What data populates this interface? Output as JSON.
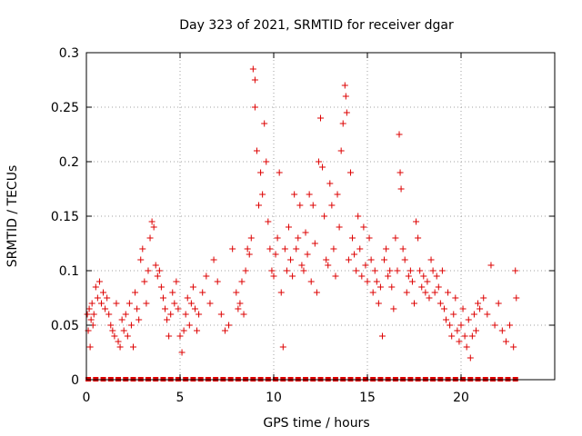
{
  "chart_data": {
    "type": "scatter",
    "title": "Day 323 of 2021, SRMTID for receiver dgar",
    "xlabel": "GPS time / hours",
    "ylabel": "SRMTID / TECUs",
    "xlim": [
      0,
      25
    ],
    "ylim": [
      0,
      0.3
    ],
    "xticks": [
      0,
      5,
      10,
      15,
      20
    ],
    "xtick_labels": [
      "0",
      "5",
      "10",
      "15",
      "20"
    ],
    "yticks": [
      0,
      0.05,
      0.1,
      0.15,
      0.2,
      0.25,
      0.3
    ],
    "ytick_labels": [
      "0",
      "0.05",
      "0.1",
      "0.15",
      "0.2",
      "0.25",
      "0.3"
    ],
    "grid": true,
    "marker": "+",
    "color": "#dd0000",
    "series": [
      {
        "name": "SRMTID",
        "points": [
          [
            0.05,
            0.06
          ],
          [
            0.1,
            0.045
          ],
          [
            0.15,
            0.065
          ],
          [
            0.2,
            0.03
          ],
          [
            0.25,
            0.055
          ],
          [
            0.3,
            0.07
          ],
          [
            0.35,
            0.05
          ],
          [
            0.4,
            0.06
          ],
          [
            0.5,
            0.085
          ],
          [
            0.6,
            0.075
          ],
          [
            0.7,
            0.09
          ],
          [
            0.8,
            0.07
          ],
          [
            0.9,
            0.08
          ],
          [
            1.0,
            0.065
          ],
          [
            1.1,
            0.075
          ],
          [
            1.2,
            0.06
          ],
          [
            1.3,
            0.05
          ],
          [
            1.4,
            0.045
          ],
          [
            1.5,
            0.04
          ],
          [
            1.6,
            0.07
          ],
          [
            1.7,
            0.035
          ],
          [
            1.8,
            0.03
          ],
          [
            1.9,
            0.055
          ],
          [
            2.0,
            0.045
          ],
          [
            2.1,
            0.06
          ],
          [
            2.2,
            0.04
          ],
          [
            2.3,
            0.07
          ],
          [
            2.4,
            0.05
          ],
          [
            2.5,
            0.03
          ],
          [
            2.6,
            0.08
          ],
          [
            2.7,
            0.065
          ],
          [
            2.8,
            0.055
          ],
          [
            2.9,
            0.11
          ],
          [
            3.0,
            0.12
          ],
          [
            3.1,
            0.09
          ],
          [
            3.2,
            0.07
          ],
          [
            3.3,
            0.1
          ],
          [
            3.4,
            0.13
          ],
          [
            3.5,
            0.145
          ],
          [
            3.6,
            0.14
          ],
          [
            3.7,
            0.105
          ],
          [
            3.8,
            0.095
          ],
          [
            3.9,
            0.1
          ],
          [
            4.0,
            0.085
          ],
          [
            4.1,
            0.075
          ],
          [
            4.2,
            0.065
          ],
          [
            4.3,
            0.055
          ],
          [
            4.4,
            0.04
          ],
          [
            4.5,
            0.06
          ],
          [
            4.6,
            0.08
          ],
          [
            4.7,
            0.07
          ],
          [
            4.8,
            0.09
          ],
          [
            4.9,
            0.065
          ],
          [
            5.0,
            0.04
          ],
          [
            5.1,
            0.025
          ],
          [
            5.2,
            0.045
          ],
          [
            5.3,
            0.06
          ],
          [
            5.4,
            0.075
          ],
          [
            5.5,
            0.05
          ],
          [
            5.6,
            0.07
          ],
          [
            5.7,
            0.085
          ],
          [
            5.8,
            0.065
          ],
          [
            5.9,
            0.045
          ],
          [
            6.0,
            0.06
          ],
          [
            6.2,
            0.08
          ],
          [
            6.4,
            0.095
          ],
          [
            6.6,
            0.07
          ],
          [
            6.8,
            0.11
          ],
          [
            7.0,
            0.09
          ],
          [
            7.2,
            0.06
          ],
          [
            7.4,
            0.045
          ],
          [
            7.6,
            0.05
          ],
          [
            7.8,
            0.12
          ],
          [
            8.0,
            0.08
          ],
          [
            8.1,
            0.065
          ],
          [
            8.2,
            0.07
          ],
          [
            8.3,
            0.09
          ],
          [
            8.4,
            0.06
          ],
          [
            8.5,
            0.1
          ],
          [
            8.6,
            0.12
          ],
          [
            8.7,
            0.115
          ],
          [
            8.8,
            0.13
          ],
          [
            8.9,
            0.285
          ],
          [
            9.0,
            0.275
          ],
          [
            9.0,
            0.25
          ],
          [
            9.1,
            0.21
          ],
          [
            9.2,
            0.16
          ],
          [
            9.3,
            0.19
          ],
          [
            9.4,
            0.17
          ],
          [
            9.5,
            0.235
          ],
          [
            9.6,
            0.2
          ],
          [
            9.7,
            0.145
          ],
          [
            9.8,
            0.12
          ],
          [
            9.9,
            0.1
          ],
          [
            10.0,
            0.095
          ],
          [
            10.1,
            0.115
          ],
          [
            10.2,
            0.13
          ],
          [
            10.3,
            0.19
          ],
          [
            10.4,
            0.08
          ],
          [
            10.5,
            0.03
          ],
          [
            10.6,
            0.12
          ],
          [
            10.7,
            0.1
          ],
          [
            10.8,
            0.14
          ],
          [
            10.9,
            0.11
          ],
          [
            11.0,
            0.095
          ],
          [
            11.1,
            0.17
          ],
          [
            11.2,
            0.12
          ],
          [
            11.3,
            0.13
          ],
          [
            11.4,
            0.16
          ],
          [
            11.5,
            0.105
          ],
          [
            11.6,
            0.1
          ],
          [
            11.7,
            0.135
          ],
          [
            11.8,
            0.115
          ],
          [
            11.9,
            0.17
          ],
          [
            12.0,
            0.09
          ],
          [
            12.1,
            0.16
          ],
          [
            12.2,
            0.125
          ],
          [
            12.3,
            0.08
          ],
          [
            12.4,
            0.2
          ],
          [
            12.5,
            0.24
          ],
          [
            12.6,
            0.195
          ],
          [
            12.7,
            0.15
          ],
          [
            12.8,
            0.11
          ],
          [
            12.9,
            0.105
          ],
          [
            13.0,
            0.18
          ],
          [
            13.1,
            0.16
          ],
          [
            13.2,
            0.12
          ],
          [
            13.3,
            0.095
          ],
          [
            13.4,
            0.17
          ],
          [
            13.5,
            0.14
          ],
          [
            13.6,
            0.21
          ],
          [
            13.7,
            0.235
          ],
          [
            13.8,
            0.27
          ],
          [
            13.85,
            0.26
          ],
          [
            13.9,
            0.245
          ],
          [
            14.0,
            0.11
          ],
          [
            14.1,
            0.19
          ],
          [
            14.2,
            0.13
          ],
          [
            14.3,
            0.115
          ],
          [
            14.4,
            0.1
          ],
          [
            14.5,
            0.15
          ],
          [
            14.6,
            0.12
          ],
          [
            14.7,
            0.095
          ],
          [
            14.8,
            0.14
          ],
          [
            14.9,
            0.105
          ],
          [
            15.0,
            0.09
          ],
          [
            15.1,
            0.13
          ],
          [
            15.2,
            0.11
          ],
          [
            15.3,
            0.08
          ],
          [
            15.4,
            0.1
          ],
          [
            15.5,
            0.09
          ],
          [
            15.6,
            0.07
          ],
          [
            15.7,
            0.085
          ],
          [
            15.8,
            0.04
          ],
          [
            15.9,
            0.11
          ],
          [
            16.0,
            0.12
          ],
          [
            16.1,
            0.095
          ],
          [
            16.2,
            0.1
          ],
          [
            16.3,
            0.085
          ],
          [
            16.4,
            0.065
          ],
          [
            16.5,
            0.13
          ],
          [
            16.6,
            0.1
          ],
          [
            16.7,
            0.225
          ],
          [
            16.75,
            0.19
          ],
          [
            16.8,
            0.175
          ],
          [
            16.9,
            0.12
          ],
          [
            17.0,
            0.11
          ],
          [
            17.1,
            0.08
          ],
          [
            17.2,
            0.095
          ],
          [
            17.3,
            0.1
          ],
          [
            17.4,
            0.09
          ],
          [
            17.5,
            0.07
          ],
          [
            17.6,
            0.145
          ],
          [
            17.7,
            0.13
          ],
          [
            17.8,
            0.1
          ],
          [
            17.9,
            0.085
          ],
          [
            18.0,
            0.095
          ],
          [
            18.1,
            0.08
          ],
          [
            18.2,
            0.09
          ],
          [
            18.3,
            0.075
          ],
          [
            18.4,
            0.11
          ],
          [
            18.5,
            0.1
          ],
          [
            18.6,
            0.08
          ],
          [
            18.7,
            0.095
          ],
          [
            18.8,
            0.085
          ],
          [
            18.9,
            0.07
          ],
          [
            19.0,
            0.1
          ],
          [
            19.1,
            0.065
          ],
          [
            19.2,
            0.055
          ],
          [
            19.3,
            0.08
          ],
          [
            19.4,
            0.05
          ],
          [
            19.5,
            0.04
          ],
          [
            19.6,
            0.06
          ],
          [
            19.7,
            0.075
          ],
          [
            19.8,
            0.045
          ],
          [
            19.9,
            0.035
          ],
          [
            20.0,
            0.05
          ],
          [
            20.1,
            0.065
          ],
          [
            20.2,
            0.04
          ],
          [
            20.3,
            0.03
          ],
          [
            20.4,
            0.055
          ],
          [
            20.5,
            0.02
          ],
          [
            20.6,
            0.04
          ],
          [
            20.7,
            0.06
          ],
          [
            20.8,
            0.045
          ],
          [
            20.9,
            0.07
          ],
          [
            21.0,
            0.065
          ],
          [
            21.2,
            0.075
          ],
          [
            21.4,
            0.06
          ],
          [
            21.6,
            0.105
          ],
          [
            21.8,
            0.05
          ],
          [
            22.0,
            0.07
          ],
          [
            22.2,
            0.045
          ],
          [
            22.4,
            0.035
          ],
          [
            22.6,
            0.05
          ],
          [
            22.8,
            0.03
          ],
          [
            22.9,
            0.1
          ],
          [
            22.95,
            0.075
          ]
        ],
        "zero_points_x": [
          0.1,
          0.5,
          0.9,
          1.3,
          1.7,
          2.1,
          2.5,
          2.9,
          3.3,
          3.7,
          4.1,
          4.5,
          4.9,
          5.3,
          5.7,
          6.1,
          6.5,
          6.9,
          7.3,
          7.7,
          8.1,
          8.5,
          8.9,
          9.3,
          9.7,
          10.1,
          10.5,
          10.9,
          11.3,
          11.7,
          12.1,
          12.5,
          12.9,
          13.3,
          13.7,
          14.1,
          14.5,
          14.9,
          15.3,
          15.7,
          16.1,
          16.5,
          16.9,
          17.3,
          17.7,
          18.1,
          18.5,
          18.9,
          19.3,
          19.7,
          20.1,
          20.5,
          20.9,
          21.3,
          21.7,
          22.1,
          22.5,
          22.9
        ]
      }
    ]
  }
}
